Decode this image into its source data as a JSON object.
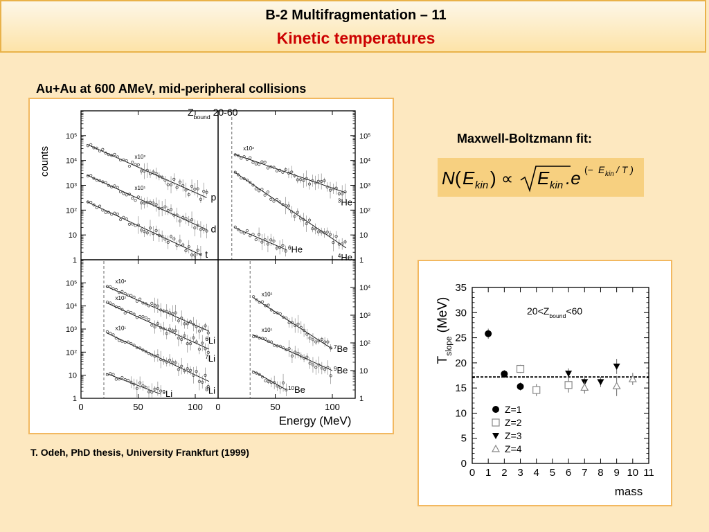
{
  "header": {
    "title": "B-2 Multifragmentation – 11",
    "subtitle": "Kinetic temperatures"
  },
  "left_caption": "Au+Au at 600 AMeV, mid-peripheral collisions",
  "fit_label": "Maxwell-Boltzmann fit:",
  "citation": "T. Odeh, PhD thesis, University Frankfurt (1999)",
  "formula": {
    "N": "N",
    "open": "(",
    "E": "E",
    "kin": "kin",
    "close": ")",
    "prop": "∝",
    "dot_e": ".e",
    "exp_open": "(−",
    "exp_slash": "/ T )"
  },
  "colors": {
    "background": "#fde8c0",
    "panel_border": "#f2b860",
    "subtitle": "#cc0000",
    "formula_bg": "#f7d080"
  },
  "chart_data": [
    {
      "type": "scatter",
      "xlabel": "Energy (MeV)",
      "ylabel": "counts",
      "title_main": "Z",
      "title_sub": "bound",
      "title_range": "20-60",
      "xlim": [
        0,
        120
      ],
      "xticks": [
        0,
        50,
        100
      ],
      "panels": [
        {
          "name": "top-left",
          "ylim": [
            1,
            1000000
          ],
          "yticks": [
            {
              "v": 100000,
              "b": "10",
              "e": "5"
            },
            {
              "v": 10000,
              "b": "10",
              "e": "4"
            },
            {
              "v": 1000,
              "b": "10",
              "e": "3"
            },
            {
              "v": 100,
              "b": "10",
              "e": "2"
            },
            {
              "v": 10,
              "b": "10",
              "e": ""
            },
            {
              "v": 1,
              "b": "1",
              "e": ""
            }
          ],
          "cut": null,
          "series": [
            {
              "name": "p",
              "scale": "x10",
              "scale_exp": "2",
              "x0": 5,
              "y0": 45000,
              "x1": 108,
              "y1": 350,
              "x_end": 110
            },
            {
              "name": "d",
              "scale": "x10",
              "scale_exp": "1",
              "x0": 5,
              "y0": 2600,
              "x1": 108,
              "y1": 18,
              "x_end": 110
            },
            {
              "name": "t",
              "scale": "",
              "scale_exp": "",
              "x0": 5,
              "y0": 220,
              "x1": 100,
              "y1": 2,
              "x_end": 105
            }
          ]
        },
        {
          "name": "top-right",
          "ylim": [
            1,
            1000000
          ],
          "yticks": [
            {
              "v": 100000,
              "b": "10",
              "e": "5"
            },
            {
              "v": 10000,
              "b": "10",
              "e": "4"
            },
            {
              "v": 1000,
              "b": "10",
              "e": "3"
            },
            {
              "v": 100,
              "b": "10",
              "e": "2"
            },
            {
              "v": 10,
              "b": "10",
              "e": ""
            },
            {
              "v": 1,
              "b": "1",
              "e": ""
            }
          ],
          "cut": 12,
          "series": [
            {
              "name": "3He",
              "iso_mass": "3",
              "iso_sym": "He",
              "scale": "x10",
              "scale_exp": "2",
              "x0": 14,
              "y0": 18000,
              "x1": 112,
              "y1": 500,
              "x_end": 112
            },
            {
              "name": "4He",
              "iso_mass": "4",
              "iso_sym": "He",
              "scale": "",
              "scale_exp": "",
              "x0": 14,
              "y0": 3500,
              "x1": 112,
              "y1": 3,
              "x_end": 112
            },
            {
              "name": "6He",
              "iso_mass": "6",
              "iso_sym": "He",
              "scale": "",
              "scale_exp": "",
              "x0": 14,
              "y0": 20,
              "x1": 60,
              "y1": 2.5,
              "x_end": 60
            }
          ]
        },
        {
          "name": "bottom-left",
          "ylim": [
            1,
            1000000
          ],
          "yticks": [
            {
              "v": 100000,
              "b": "10",
              "e": "5"
            },
            {
              "v": 10000,
              "b": "10",
              "e": "4"
            },
            {
              "v": 1000,
              "b": "10",
              "e": "3"
            },
            {
              "v": 100,
              "b": "10",
              "e": "2"
            },
            {
              "v": 10,
              "b": "10",
              "e": ""
            },
            {
              "v": 1,
              "b": "1",
              "e": ""
            }
          ],
          "cut": 20,
          "series": [
            {
              "name": "6Li",
              "iso_mass": "6",
              "iso_sym": "Li",
              "scale": "x10",
              "scale_exp": "3",
              "x0": 22,
              "y0": 70000,
              "x1": 110,
              "y1": 900,
              "x_end": 112
            },
            {
              "name": "7Li",
              "iso_mass": "7",
              "iso_sym": "Li",
              "scale": "x10",
              "scale_exp": "2",
              "x0": 22,
              "y0": 14000,
              "x1": 110,
              "y1": 150,
              "x_end": 112
            },
            {
              "name": "8Li",
              "iso_mass": "8",
              "iso_sym": "Li",
              "scale": "x10",
              "scale_exp": "1",
              "x0": 22,
              "y0": 700,
              "x1": 110,
              "y1": 6,
              "x_end": 112
            },
            {
              "name": "9Li",
              "iso_mass": "9",
              "iso_sym": "Li",
              "scale": "",
              "scale_exp": "",
              "x0": 22,
              "y0": 12,
              "x1": 70,
              "y1": 1.5,
              "x_end": 70
            }
          ]
        },
        {
          "name": "bottom-right",
          "ylim": [
            1,
            100000
          ],
          "yticks": [
            {
              "v": 10000,
              "b": "10",
              "e": "4"
            },
            {
              "v": 1000,
              "b": "10",
              "e": "3"
            },
            {
              "v": 100,
              "b": "10",
              "e": "2"
            },
            {
              "v": 10,
              "b": "10",
              "e": ""
            },
            {
              "v": 1,
              "b": "1",
              "e": ""
            }
          ],
          "cut": 28,
          "series": [
            {
              "name": "7Be",
              "iso_mass": "7",
              "iso_sym": "Be",
              "scale": "x10",
              "scale_exp": "2",
              "x0": 30,
              "y0": 4500,
              "x1": 100,
              "y1": 60,
              "x_end": 100
            },
            {
              "name": "9Be",
              "iso_mass": "9",
              "iso_sym": "Be",
              "scale": "x10",
              "scale_exp": "1",
              "x0": 30,
              "y0": 200,
              "x1": 100,
              "y1": 10,
              "x_end": 100
            },
            {
              "name": "10Be",
              "iso_mass": "10",
              "iso_sym": "Be",
              "scale": "",
              "scale_exp": "",
              "x0": 30,
              "y0": 10,
              "x1": 60,
              "y1": 2,
              "x_end": 60
            }
          ]
        }
      ]
    },
    {
      "type": "scatter",
      "xlabel": "mass",
      "ylabel_main": "T",
      "ylabel_sub": "slope",
      "ylabel_unit": "(MeV)",
      "annotation_pre": "20<Z",
      "annotation_sub": "bound",
      "annotation_post": "<60",
      "xlim": [
        0,
        11
      ],
      "ylim": [
        0,
        35
      ],
      "xticks": [
        0,
        1,
        2,
        3,
        4,
        5,
        6,
        7,
        8,
        9,
        10,
        11
      ],
      "yticks": [
        0,
        5,
        10,
        15,
        20,
        25,
        30,
        35
      ],
      "reference_line": 17.2,
      "legend_position": "bottom-left",
      "series": [
        {
          "name": "Z=1",
          "marker": "filled-circle",
          "points": [
            {
              "x": 1,
              "y": 25.8,
              "err": 1.0
            },
            {
              "x": 2,
              "y": 17.8,
              "err": 0.8
            },
            {
              "x": 3,
              "y": 15.3,
              "err": 0.8
            }
          ]
        },
        {
          "name": "Z=2",
          "marker": "open-square",
          "points": [
            {
              "x": 3,
              "y": 18.8,
              "err": 0.8
            },
            {
              "x": 4,
              "y": 14.6,
              "err": 1.2
            },
            {
              "x": 6,
              "y": 15.6,
              "err": 1.5
            }
          ]
        },
        {
          "name": "Z=3",
          "marker": "filled-triangle-down",
          "points": [
            {
              "x": 6,
              "y": 17.9,
              "err": 1.0
            },
            {
              "x": 7,
              "y": 16.2,
              "err": 1.2
            },
            {
              "x": 8,
              "y": 16.2,
              "err": 1.0
            },
            {
              "x": 9,
              "y": 19.3,
              "err": 1.5
            }
          ]
        },
        {
          "name": "Z=4",
          "marker": "open-triangle-up",
          "points": [
            {
              "x": 7,
              "y": 15.1,
              "err": 1.2
            },
            {
              "x": 9,
              "y": 15.4,
              "err": 2.0
            },
            {
              "x": 10,
              "y": 16.8,
              "err": 1.2
            }
          ]
        }
      ]
    }
  ]
}
